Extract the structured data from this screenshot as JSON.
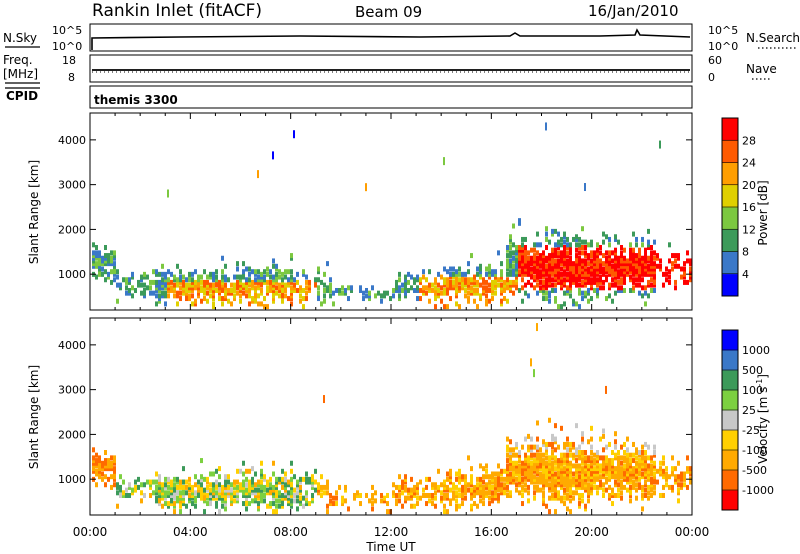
{
  "header": {
    "station": "Rankin Inlet (fitACF)",
    "beam": "Beam 09",
    "date": "16/Jan/2010"
  },
  "strips": {
    "nsky": {
      "left_label": "N.Sky",
      "left_ticks": [
        "10^5",
        "10^0"
      ],
      "right_label": "N.Search",
      "right_ticks": [
        "10^5",
        "10^0"
      ]
    },
    "freq": {
      "left_label_1": "Freq.",
      "left_label_2": "[MHz]",
      "left_ticks": [
        "18",
        "8"
      ],
      "right_label": "Nave",
      "right_ticks": [
        "60",
        "0"
      ]
    },
    "cpid": {
      "label": "CPID",
      "value": "themis 3300"
    }
  },
  "colors": {
    "power_scale": [
      "#0000ff",
      "#3a78c8",
      "#3c9a5a",
      "#7cc840",
      "#e0d000",
      "#ff9e00",
      "#ff5a00",
      "#ff0000"
    ],
    "velocity_scale": [
      "#ff0000",
      "#ff6a00",
      "#ffaa00",
      "#ffd000",
      "#c8c8c8",
      "#7cd040",
      "#3c9a5a",
      "#3a78c8",
      "#0000ff"
    ]
  },
  "chart_data": [
    {
      "type": "heatmap",
      "panel": "power",
      "ylabel": "Slant Range [km]",
      "yticks": [
        "1000",
        "2000",
        "3000",
        "4000"
      ],
      "ylim": [
        200,
        4600
      ],
      "xlim_hours": [
        0,
        24
      ],
      "colorbar": {
        "label": "Power [dB]",
        "ticks": [
          "4",
          "8",
          "12",
          "16",
          "20",
          "24",
          "28"
        ],
        "range": [
          0,
          32
        ]
      },
      "grid": false
    },
    {
      "type": "heatmap",
      "panel": "velocity",
      "ylabel": "Slant Range [km]",
      "yticks": [
        "1000",
        "2000",
        "3000",
        "4000"
      ],
      "ylim": [
        200,
        4600
      ],
      "xlim_hours": [
        0,
        24
      ],
      "xlabel": "Time UT",
      "xticks": [
        "00:00",
        "04:00",
        "08:00",
        "12:00",
        "16:00",
        "20:00",
        "00:00"
      ],
      "colorbar": {
        "label": "Velocity [m s^-1]",
        "ticks": [
          "1000",
          "500",
          "100",
          "25",
          "-25",
          "-100",
          "-500",
          "-1000"
        ]
      },
      "grid": false
    }
  ]
}
